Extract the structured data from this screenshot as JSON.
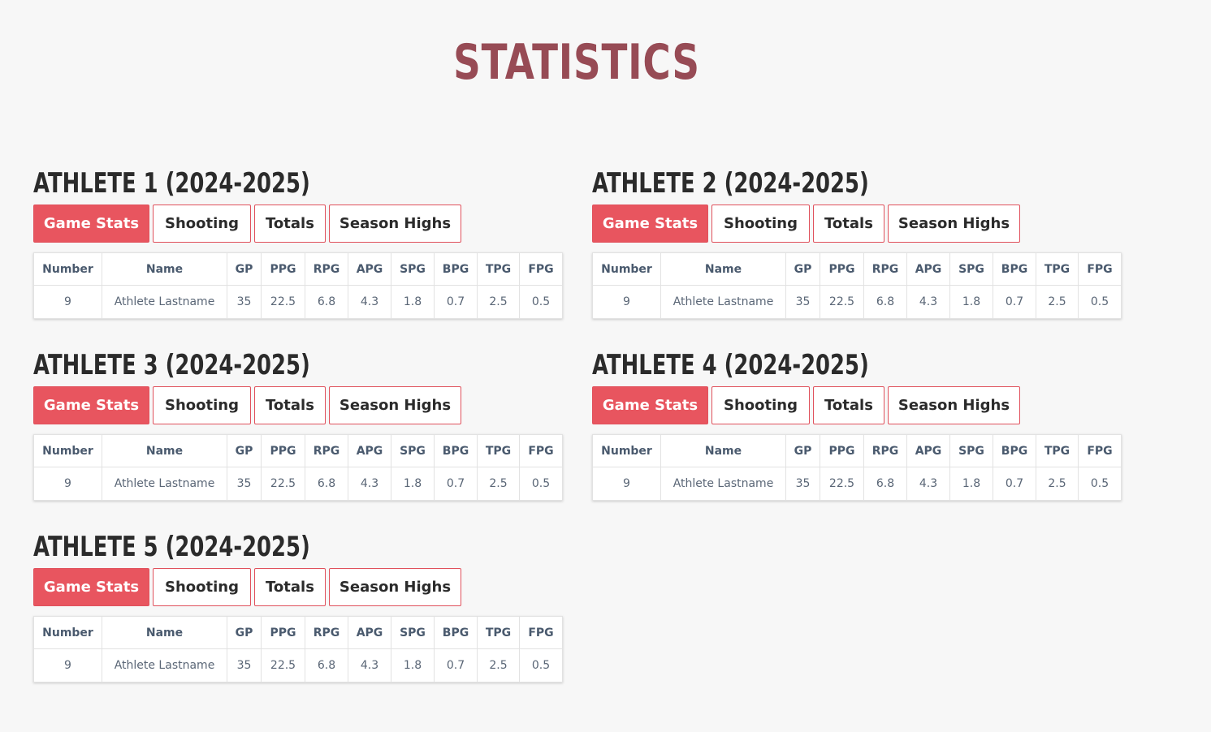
{
  "page": {
    "title": "STATISTICS",
    "accent_color": "#e8555f",
    "title_color": "#974b55"
  },
  "tabs": [
    "Game Stats",
    "Shooting",
    "Totals",
    "Season Highs"
  ],
  "columns": [
    "Number",
    "Name",
    "GP",
    "PPG",
    "RPG",
    "APG",
    "SPG",
    "BPG",
    "TPG",
    "FPG"
  ],
  "athletes": [
    {
      "title": "ATHLETE 1 (2024-2025)",
      "active_tab": "Game Stats",
      "row": {
        "number": "9",
        "name": "Athlete Lastname",
        "gp": "35",
        "ppg": "22.5",
        "rpg": "6.8",
        "apg": "4.3",
        "spg": "1.8",
        "bpg": "0.7",
        "tpg": "2.5",
        "fpg": "0.5"
      }
    },
    {
      "title": "ATHLETE 2 (2024-2025)",
      "active_tab": "Game Stats",
      "row": {
        "number": "9",
        "name": "Athlete Lastname",
        "gp": "35",
        "ppg": "22.5",
        "rpg": "6.8",
        "apg": "4.3",
        "spg": "1.8",
        "bpg": "0.7",
        "tpg": "2.5",
        "fpg": "0.5"
      }
    },
    {
      "title": "ATHLETE 3 (2024-2025)",
      "active_tab": "Game Stats",
      "row": {
        "number": "9",
        "name": "Athlete Lastname",
        "gp": "35",
        "ppg": "22.5",
        "rpg": "6.8",
        "apg": "4.3",
        "spg": "1.8",
        "bpg": "0.7",
        "tpg": "2.5",
        "fpg": "0.5"
      }
    },
    {
      "title": "ATHLETE 4 (2024-2025)",
      "active_tab": "Game Stats",
      "row": {
        "number": "9",
        "name": "Athlete Lastname",
        "gp": "35",
        "ppg": "22.5",
        "rpg": "6.8",
        "apg": "4.3",
        "spg": "1.8",
        "bpg": "0.7",
        "tpg": "2.5",
        "fpg": "0.5"
      }
    },
    {
      "title": "ATHLETE 5 (2024-2025)",
      "active_tab": "Game Stats",
      "row": {
        "number": "9",
        "name": "Athlete Lastname",
        "gp": "35",
        "ppg": "22.5",
        "rpg": "6.8",
        "apg": "4.3",
        "spg": "1.8",
        "bpg": "0.7",
        "tpg": "2.5",
        "fpg": "0.5"
      }
    }
  ]
}
